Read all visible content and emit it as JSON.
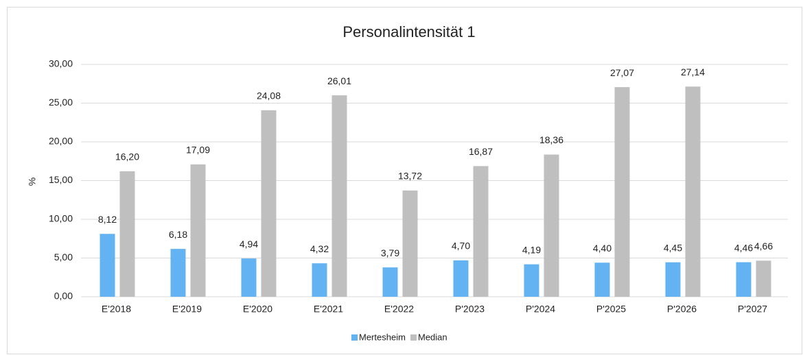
{
  "chart_data": {
    "type": "bar",
    "title": "Personalintensität 1",
    "y_label": "%",
    "categories": [
      "E'2018",
      "E'2019",
      "E'2020",
      "E'2021",
      "E'2022",
      "P'2023",
      "P'2024",
      "P'2025",
      "P'2026",
      "P'2027"
    ],
    "series": [
      {
        "name": "Mertesheim",
        "color": "#63b3f2",
        "values": [
          8.12,
          6.18,
          4.94,
          4.32,
          3.79,
          4.7,
          4.19,
          4.4,
          4.45,
          4.46
        ],
        "value_labels": [
          "8,12",
          "6,18",
          "4,94",
          "4,32",
          "3,79",
          "4,70",
          "4,19",
          "4,40",
          "4,45",
          "4,46"
        ]
      },
      {
        "name": "Median",
        "color": "#bfbfbf",
        "values": [
          16.2,
          17.09,
          24.08,
          26.01,
          13.72,
          16.87,
          18.36,
          27.07,
          27.14,
          4.66
        ],
        "value_labels": [
          "16,20",
          "17,09",
          "24,08",
          "26,01",
          "13,72",
          "16,87",
          "18,36",
          "27,07",
          "27,14",
          "4,66"
        ]
      }
    ],
    "ylim": [
      0,
      30
    ],
    "yticks": [
      {
        "value": 0,
        "label": "0,00"
      },
      {
        "value": 5,
        "label": "5,00"
      },
      {
        "value": 10,
        "label": "10,00"
      },
      {
        "value": 15,
        "label": "15,00"
      },
      {
        "value": 20,
        "label": "20,00"
      },
      {
        "value": 25,
        "label": "25,00"
      },
      {
        "value": 30,
        "label": "30,00"
      }
    ],
    "grid": true,
    "legend": "bottom"
  }
}
